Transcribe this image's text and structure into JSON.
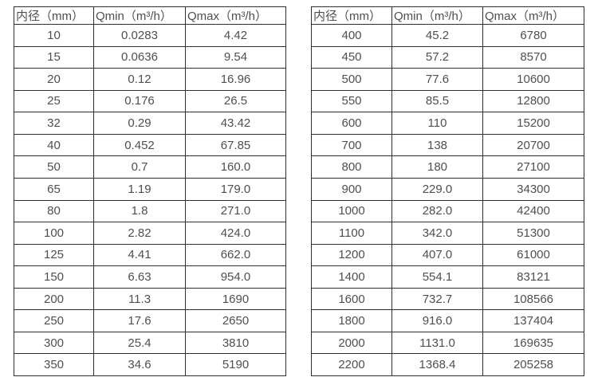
{
  "page": {
    "background_color": "#ffffff",
    "border_color": "#2f2f2f",
    "text_color": "#4d4f52"
  },
  "chart_data": [
    {
      "type": "table",
      "name": "flow-table-small-diameters",
      "headers": [
        "内径（mm）",
        "Qmin（m³/h）",
        "Qmax（m³/h）"
      ],
      "rows": [
        [
          "10",
          "0.0283",
          "4.42"
        ],
        [
          "15",
          "0.0636",
          "9.54"
        ],
        [
          "20",
          "0.12",
          "16.96"
        ],
        [
          "25",
          "0.176",
          "26.5"
        ],
        [
          "32",
          "0.29",
          "43.42"
        ],
        [
          "40",
          "0.452",
          "67.85"
        ],
        [
          "50",
          "0.7",
          "160.0"
        ],
        [
          "65",
          "1.19",
          "179.0"
        ],
        [
          "80",
          "1.8",
          "271.0"
        ],
        [
          "100",
          "2.82",
          "424.0"
        ],
        [
          "125",
          "4.41",
          "662.0"
        ],
        [
          "150",
          "6.63",
          "954.0"
        ],
        [
          "200",
          "11.3",
          "1690"
        ],
        [
          "250",
          "17.6",
          "2650"
        ],
        [
          "300",
          "25.4",
          "3810"
        ],
        [
          "350",
          "34.6",
          "5190"
        ]
      ]
    },
    {
      "type": "table",
      "name": "flow-table-large-diameters",
      "headers": [
        "内径（mm）",
        "Qmin（m³/h）",
        "Qmax（m³/h）"
      ],
      "rows": [
        [
          "400",
          "45.2",
          "6780"
        ],
        [
          "450",
          "57.2",
          "8570"
        ],
        [
          "500",
          "77.6",
          "10600"
        ],
        [
          "550",
          "85.5",
          "12800"
        ],
        [
          "600",
          "110",
          "15200"
        ],
        [
          "700",
          "138",
          "20700"
        ],
        [
          "800",
          "180",
          "27100"
        ],
        [
          "900",
          "229.0",
          "34300"
        ],
        [
          "1000",
          "282.0",
          "42400"
        ],
        [
          "1100",
          "342.0",
          "51300"
        ],
        [
          "1200",
          "407.0",
          "61000"
        ],
        [
          "1400",
          "554.1",
          "83121"
        ],
        [
          "1600",
          "732.7",
          "108566"
        ],
        [
          "1800",
          "916.0",
          "137404"
        ],
        [
          "2000",
          "1131.0",
          "169635"
        ],
        [
          "2200",
          "1368.4",
          "205258"
        ]
      ]
    }
  ]
}
